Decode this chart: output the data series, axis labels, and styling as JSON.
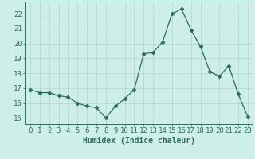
{
  "x": [
    0,
    1,
    2,
    3,
    4,
    5,
    6,
    7,
    8,
    9,
    10,
    11,
    12,
    13,
    14,
    15,
    16,
    17,
    18,
    19,
    20,
    21,
    22,
    23
  ],
  "y": [
    16.9,
    16.7,
    16.7,
    16.5,
    16.4,
    16.0,
    15.8,
    15.7,
    15.0,
    15.8,
    16.3,
    16.9,
    19.3,
    19.4,
    20.1,
    22.0,
    22.3,
    20.9,
    19.8,
    18.1,
    17.8,
    18.5,
    16.6,
    15.1
  ],
  "xlabel": "Humidex (Indice chaleur)",
  "ylim": [
    14.6,
    22.8
  ],
  "xlim": [
    -0.5,
    23.5
  ],
  "yticks": [
    15,
    16,
    17,
    18,
    19,
    20,
    21,
    22
  ],
  "xticks": [
    0,
    1,
    2,
    3,
    4,
    5,
    6,
    7,
    8,
    9,
    10,
    11,
    12,
    13,
    14,
    15,
    16,
    17,
    18,
    19,
    20,
    21,
    22,
    23
  ],
  "line_color": "#2d6b5a",
  "marker": "D",
  "marker_size": 2.5,
  "bg_color": "#ceeee8",
  "grid_color": "#b8d8d0",
  "label_fontsize": 7,
  "tick_fontsize": 6.5
}
